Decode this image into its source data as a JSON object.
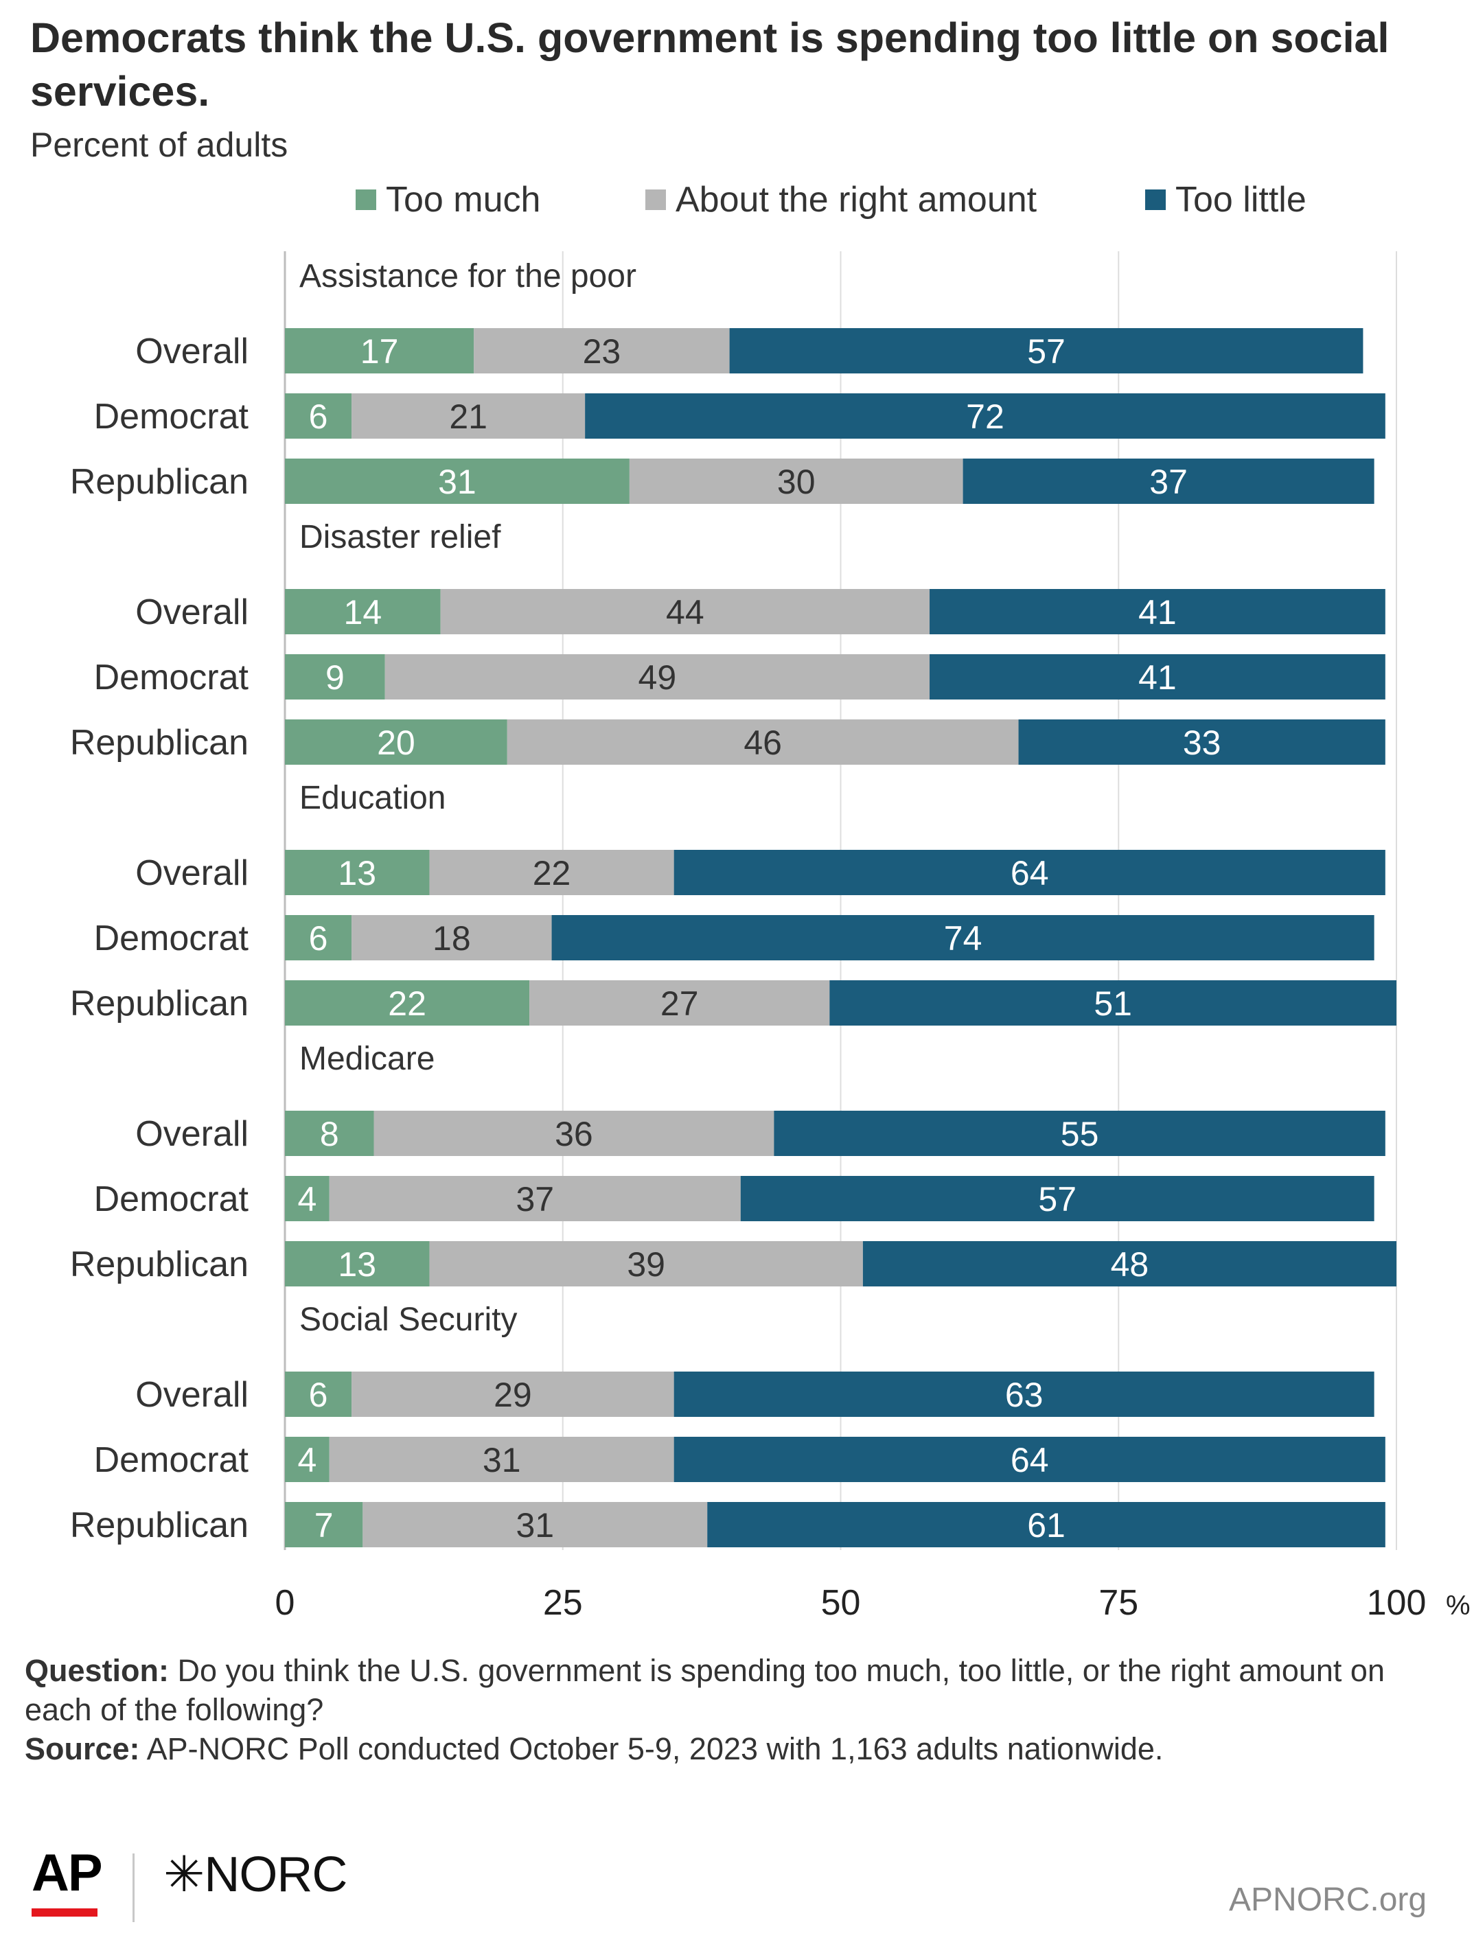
{
  "header": {
    "title": "Democrats think the U.S. government is spending too little on social services.",
    "subtitle": "Percent of adults"
  },
  "legend": [
    {
      "label": "Too much",
      "color": "#6ea384"
    },
    {
      "label": "About the right amount",
      "color": "#b6b6b6"
    },
    {
      "label": "Too little",
      "color": "#1b5c7c"
    }
  ],
  "chart_data": {
    "type": "bar",
    "orientation": "horizontal-stacked",
    "series": [
      {
        "name": "Too much",
        "color": "#6ea384"
      },
      {
        "name": "About the right amount",
        "color": "#b6b6b6"
      },
      {
        "name": "Too little",
        "color": "#1b5c7c"
      }
    ],
    "groups": [
      {
        "label": "Assistance for the poor",
        "rows": [
          {
            "label": "Overall",
            "values": [
              17,
              23,
              57
            ]
          },
          {
            "label": "Democrat",
            "values": [
              6,
              21,
              72
            ]
          },
          {
            "label": "Republican",
            "values": [
              31,
              30,
              37
            ]
          }
        ]
      },
      {
        "label": "Disaster relief",
        "rows": [
          {
            "label": "Overall",
            "values": [
              14,
              44,
              41
            ]
          },
          {
            "label": "Democrat",
            "values": [
              9,
              49,
              41
            ]
          },
          {
            "label": "Republican",
            "values": [
              20,
              46,
              33
            ]
          }
        ]
      },
      {
        "label": "Education",
        "rows": [
          {
            "label": "Overall",
            "values": [
              13,
              22,
              64
            ]
          },
          {
            "label": "Democrat",
            "values": [
              6,
              18,
              74
            ]
          },
          {
            "label": "Republican",
            "values": [
              22,
              27,
              51
            ]
          }
        ]
      },
      {
        "label": "Medicare",
        "rows": [
          {
            "label": "Overall",
            "values": [
              8,
              36,
              55
            ]
          },
          {
            "label": "Democrat",
            "values": [
              4,
              37,
              57
            ]
          },
          {
            "label": "Republican",
            "values": [
              13,
              39,
              48
            ]
          }
        ]
      },
      {
        "label": "Social Security",
        "rows": [
          {
            "label": "Overall",
            "values": [
              6,
              29,
              63
            ]
          },
          {
            "label": "Democrat",
            "values": [
              4,
              31,
              64
            ]
          },
          {
            "label": "Republican",
            "values": [
              7,
              31,
              61
            ]
          }
        ]
      }
    ],
    "x_ticks": [
      "0",
      "25",
      "50",
      "75",
      "100"
    ],
    "x_unit": "%",
    "xlim": [
      0,
      100
    ],
    "grid": true
  },
  "footer": {
    "question_label": "Question:",
    "question_text": "Do you think the U.S. government is spending too much, too little, or the right amount on each of the following?",
    "source_label": "Source:",
    "source_text": "AP-NORC Poll conducted October 5-9, 2023 with 1,163 adults nationwide."
  },
  "branding": {
    "ap_logo": "AP",
    "norc_logo": "✳NORC",
    "site": "APNORC.org"
  }
}
